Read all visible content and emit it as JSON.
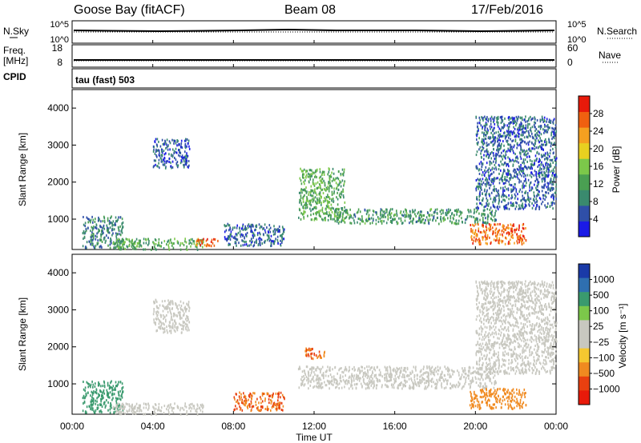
{
  "header": {
    "station": "Goose Bay (fitACF)",
    "beam": "Beam 08",
    "date": "17/Feb/2016"
  },
  "status_panels": {
    "left_labels": [
      "N.Sky",
      "Freq.",
      "[MHz]",
      "CPID"
    ],
    "right_labels": [
      "N.Search",
      "Nave"
    ],
    "nsky_ticks": [
      "10^5",
      "10^0"
    ],
    "nsearch_ticks": [
      "10^5",
      "10^0"
    ],
    "freq_ticks": [
      "18",
      "8"
    ],
    "nave_ticks": [
      "60",
      "0"
    ],
    "cpid_text": "tau (fast) 503"
  },
  "colors": {
    "power_scale": [
      "#1a1ae6",
      "#2f4fa8",
      "#3a8a6e",
      "#4a9f52",
      "#7cc84a",
      "#e8d020",
      "#f5a020",
      "#f06010",
      "#e81a0a"
    ],
    "velocity_scale": [
      "#1a3aa8",
      "#2f6fb0",
      "#3a9a6e",
      "#7cc84a",
      "#c8c8c0",
      "#c8c8c0",
      "#f5c830",
      "#f08a20",
      "#e84010",
      "#e81a0a"
    ]
  },
  "chart_data": [
    {
      "type": "heatmap",
      "title": "",
      "xlabel": "Time UT",
      "ylabel": "Slant Range [km]",
      "xlim": [
        "00:00",
        "24:00"
      ],
      "ylim": [
        180,
        4500
      ],
      "x_ticks": [
        "00:00",
        "04:00",
        "08:00",
        "12:00",
        "16:00",
        "20:00",
        "00:00"
      ],
      "y_ticks": [
        1000,
        2000,
        3000,
        4000
      ],
      "colorbar": {
        "label": "Power [dB]",
        "ticks": [
          "4",
          "8",
          "12",
          "16",
          "20",
          "24",
          "28"
        ]
      },
      "regions": [
        {
          "t0": 0.5,
          "t1": 2.5,
          "r0": 250,
          "r1": 1100,
          "value": 10
        },
        {
          "t0": 2.0,
          "t1": 6.5,
          "r0": 200,
          "r1": 500,
          "value": 14
        },
        {
          "t0": 6.0,
          "t1": 7.2,
          "r0": 300,
          "r1": 500,
          "value": 26
        },
        {
          "t0": 4.0,
          "t1": 5.8,
          "r0": 2400,
          "r1": 3200,
          "value": 7
        },
        {
          "t0": 7.5,
          "t1": 10.5,
          "r0": 300,
          "r1": 900,
          "value": 8
        },
        {
          "t0": 11.2,
          "t1": 13.5,
          "r0": 1000,
          "r1": 2400,
          "value": 14
        },
        {
          "t0": 13.0,
          "t1": 21.0,
          "r0": 900,
          "r1": 1300,
          "value": 12
        },
        {
          "t0": 19.7,
          "t1": 22.5,
          "r0": 350,
          "r1": 900,
          "value": 26
        },
        {
          "t0": 20.0,
          "t1": 24.0,
          "r0": 1300,
          "r1": 3800,
          "value": 8
        }
      ]
    },
    {
      "type": "heatmap",
      "title": "",
      "xlabel": "Time UT",
      "ylabel": "Slant Range [km]",
      "xlim": [
        "00:00",
        "24:00"
      ],
      "ylim": [
        180,
        4500
      ],
      "x_ticks": [
        "00:00",
        "04:00",
        "08:00",
        "12:00",
        "16:00",
        "20:00",
        "00:00"
      ],
      "y_ticks": [
        1000,
        2000,
        3000,
        4000
      ],
      "colorbar": {
        "label": "Velocity [m s⁻¹]",
        "ticks": [
          "1000",
          "500",
          "100",
          "25",
          "−25",
          "−100",
          "−500",
          "−1000"
        ]
      },
      "regions": [
        {
          "t0": 0.5,
          "t1": 2.5,
          "r0": 250,
          "r1": 1100,
          "value": 100
        },
        {
          "t0": 2.0,
          "t1": 6.5,
          "r0": 200,
          "r1": 500,
          "value": 0
        },
        {
          "t0": 8.0,
          "t1": 10.5,
          "r0": 300,
          "r1": 800,
          "value": -300
        },
        {
          "t0": 4.0,
          "t1": 5.8,
          "r0": 2400,
          "r1": 3300,
          "value": 0
        },
        {
          "t0": 11.5,
          "t1": 12.5,
          "r0": 1700,
          "r1": 2000,
          "value": -300
        },
        {
          "t0": 11.2,
          "t1": 21.0,
          "r0": 900,
          "r1": 1500,
          "value": 0
        },
        {
          "t0": 19.7,
          "t1": 22.5,
          "r0": 350,
          "r1": 900,
          "value": -120
        },
        {
          "t0": 20.0,
          "t1": 24.0,
          "r0": 1300,
          "r1": 3800,
          "value": 0
        }
      ]
    }
  ]
}
